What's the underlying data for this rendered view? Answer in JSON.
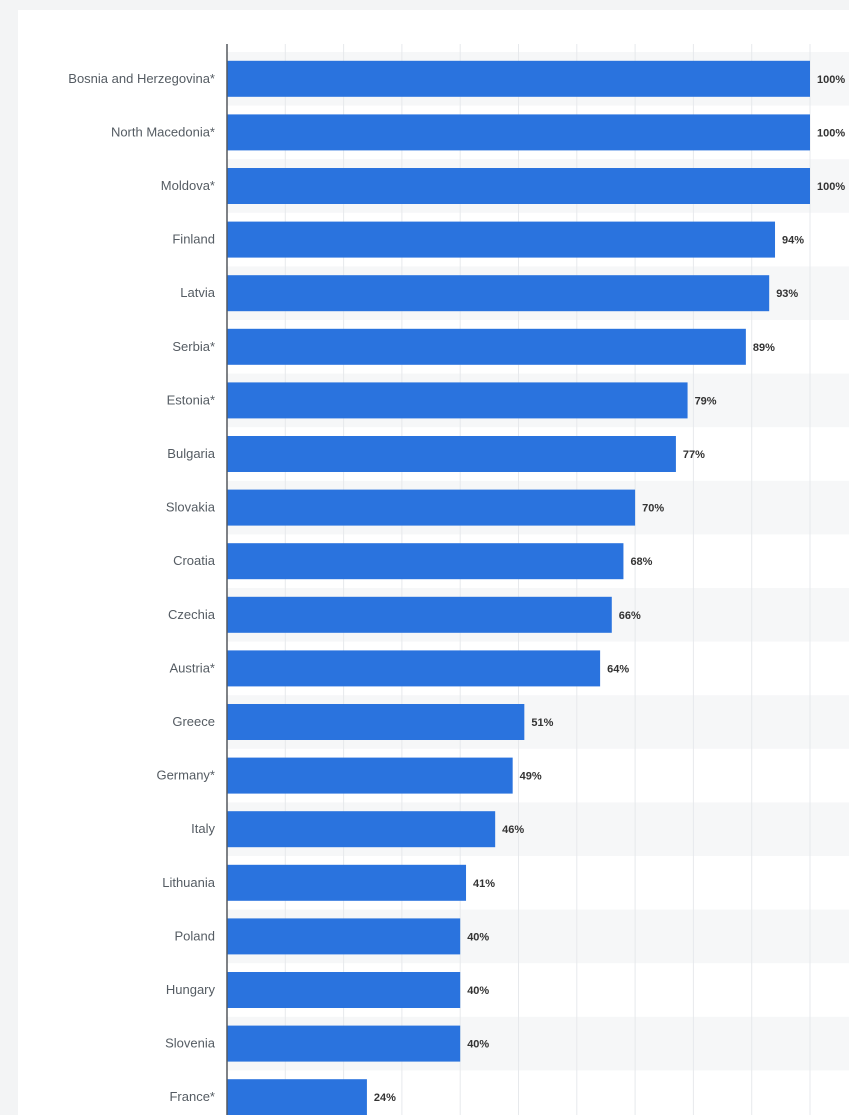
{
  "chart_data": {
    "type": "bar",
    "orientation": "horizontal",
    "categories": [
      "Bosnia and Herzegovina*",
      "North Macedonia*",
      "Moldova*",
      "Finland",
      "Latvia",
      "Serbia*",
      "Estonia*",
      "Bulgaria",
      "Slovakia",
      "Croatia",
      "Czechia",
      "Austria*",
      "Greece",
      "Germany*",
      "Italy",
      "Lithuania",
      "Poland",
      "Hungary",
      "Slovenia",
      "France*"
    ],
    "values": [
      100,
      100,
      100,
      94,
      93,
      89,
      79,
      77,
      70,
      68,
      66,
      64,
      51,
      49,
      46,
      41,
      40,
      40,
      40,
      24
    ],
    "value_labels": [
      "100%",
      "100%",
      "100%",
      "94%",
      "93%",
      "89%",
      "79%",
      "77%",
      "70%",
      "68%",
      "66%",
      "64%",
      "51%",
      "49%",
      "46%",
      "41%",
      "40%",
      "40%",
      "40%",
      "24%"
    ],
    "xlim": [
      0,
      100
    ],
    "grid": true,
    "colors": {
      "bar": "#2a73de",
      "row_band": "#f6f7f8",
      "grid": "#e7e9ec",
      "axis": "#55595e"
    }
  }
}
